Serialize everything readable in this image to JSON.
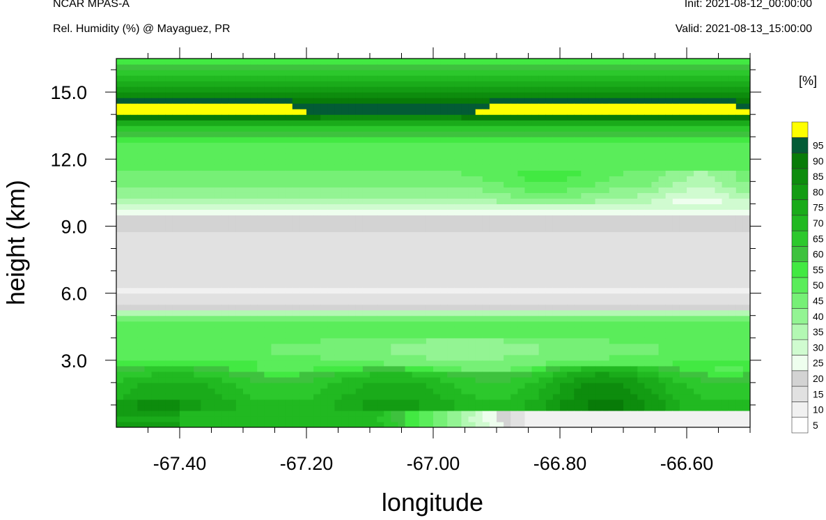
{
  "header": {
    "model": "NCAR MPAS-A",
    "subtitle": "Rel. Humidity (%) @ Mayaguez, PR",
    "init": "Init: 2021-08-12_00:00:00",
    "valid": "Valid: 2021-08-13_15:00:00"
  },
  "chart_data": {
    "type": "heatmap",
    "title": "Rel. Humidity (%) @ Mayaguez, PR",
    "xlabel": "longitude",
    "ylabel": "height (km)",
    "xlim": [
      -67.5,
      -66.5
    ],
    "ylim": [
      0,
      16.5
    ],
    "x_ticks": [
      -67.4,
      -67.2,
      -67.0,
      -66.8,
      -66.6
    ],
    "x_tick_labels": [
      "-67.40",
      "-67.20",
      "-67.00",
      "-66.80",
      "-66.60"
    ],
    "y_ticks": [
      3,
      6,
      9,
      12,
      15
    ],
    "y_tick_labels": [
      "3.0",
      "6.0",
      "9.0",
      "12.0",
      "15.0"
    ],
    "x_minor_step": 0.05,
    "y_minor_step": 1,
    "colorbar": {
      "unit_label": "[%]",
      "levels": [
        5,
        10,
        15,
        20,
        25,
        30,
        35,
        40,
        45,
        50,
        55,
        60,
        65,
        70,
        75,
        80,
        85,
        90,
        95
      ],
      "colors": [
        "#ffffff",
        "#f1f1f1",
        "#e1e1e1",
        "#d3d3d3",
        "#eefeee",
        "#d0fbd0",
        "#b3f8b3",
        "#93f493",
        "#76f076",
        "#5aed5a",
        "#42e942",
        "#3ec23e",
        "#2cc82c",
        "#21b921",
        "#1aab1a",
        "#139c13",
        "#0d8c0d",
        "#087b08",
        "#035b35",
        "#ffff00"
      ]
    },
    "rh_profile": {
      "heights_km": [
        0,
        0.5,
        1,
        1.5,
        2,
        2.5,
        3,
        3.5,
        4,
        4.5,
        5,
        5.3,
        5.6,
        6,
        7,
        8,
        8.7,
        9,
        9.3,
        9.6,
        10,
        10.5,
        11,
        11.5,
        12,
        12.5,
        13,
        13.3,
        13.6,
        13.9,
        14.1,
        14.3,
        14.6,
        14.9,
        15.3,
        15.8,
        16.2,
        16.5
      ],
      "rh_percent": [
        70,
        68,
        72,
        68,
        66,
        58,
        48,
        45,
        48,
        50,
        42,
        16,
        13,
        9,
        12,
        13,
        13,
        17,
        15,
        24,
        30,
        37,
        43,
        45,
        45,
        47,
        52,
        62,
        72,
        88,
        96,
        97,
        91,
        84,
        76,
        66,
        56,
        50
      ]
    }
  }
}
